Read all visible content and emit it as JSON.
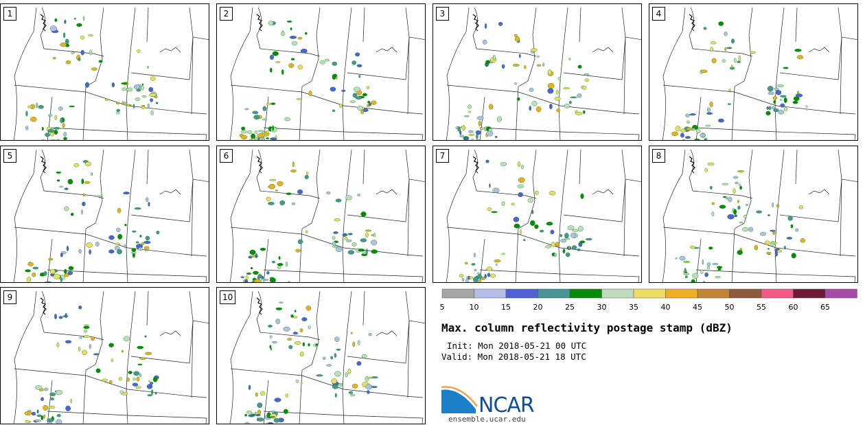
{
  "panels": [
    {
      "label": "1"
    },
    {
      "label": "2"
    },
    {
      "label": "3"
    },
    {
      "label": "4"
    },
    {
      "label": "5"
    },
    {
      "label": "6"
    },
    {
      "label": "7"
    },
    {
      "label": "8"
    },
    {
      "label": "9"
    },
    {
      "label": "10"
    }
  ],
  "colorbar": {
    "ticks": [
      "5",
      "10",
      "15",
      "20",
      "25",
      "30",
      "35",
      "40",
      "45",
      "50",
      "55",
      "60",
      "65"
    ],
    "colors": [
      "#a6a6a6",
      "#b3bde8",
      "#5061d6",
      "#4b9496",
      "#0a8a0a",
      "#bfdcbf",
      "#eddc64",
      "#eeae24",
      "#c08434",
      "#8f5a3c",
      "#f25a86",
      "#6e1b3a",
      "#a64ca8"
    ]
  },
  "title": "Max. column reflectivity postage stamp (dBZ)",
  "init": "Init: Mon 2018-05-21 00 UTC",
  "valid": "Valid: Mon 2018-05-21 18 UTC",
  "logo": {
    "text": "NCAR"
  },
  "site": "ensemble.ucar.edu"
}
